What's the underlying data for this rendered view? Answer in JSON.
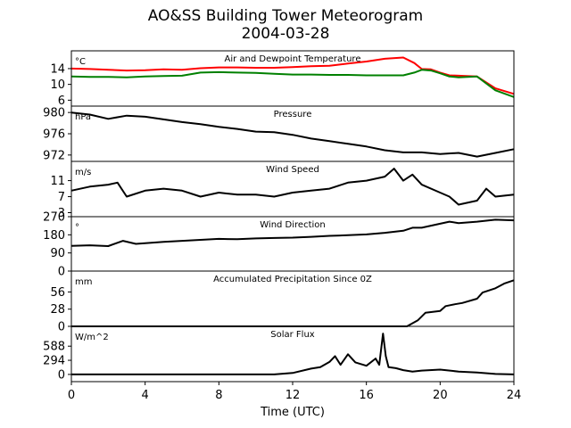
{
  "title": "AO&SS Building Tower Meteorogram",
  "subtitle": "2004-03-28",
  "xlabel": "Time (UTC)",
  "x_ticks": [
    "0",
    "4",
    "8",
    "12",
    "16",
    "20",
    "24"
  ],
  "colors": {
    "temperature": "#ff0000",
    "dewpoint": "#008000",
    "default": "#000000"
  },
  "chart_data": [
    {
      "type": "line",
      "title": "Air and Dewpoint Temperature",
      "unit": "°C",
      "xlim": [
        0,
        24
      ],
      "ylim": [
        4.5,
        18.5
      ],
      "yticks": [
        6,
        10,
        14
      ],
      "ytick_labels": [
        "6",
        "10",
        "14"
      ],
      "x": [
        0,
        1,
        2,
        3,
        4,
        5,
        6,
        7,
        8,
        9,
        10,
        11,
        12,
        13,
        14,
        15,
        16,
        17,
        18,
        18.6,
        19,
        19.5,
        20,
        20.5,
        21,
        22,
        23,
        24
      ],
      "series": [
        {
          "color": "#ff0000",
          "values": [
            14.0,
            13.9,
            13.7,
            13.5,
            13.6,
            13.8,
            13.7,
            14.1,
            14.3,
            14.3,
            14.2,
            14.2,
            14.4,
            14.6,
            14.7,
            15.3,
            15.8,
            16.5,
            16.8,
            15.4,
            13.9,
            13.8,
            13.0,
            12.3,
            12.2,
            12.0,
            9.0,
            7.6
          ]
        },
        {
          "color": "#008000",
          "values": [
            12.0,
            11.9,
            11.9,
            11.8,
            12.0,
            12.1,
            12.2,
            13.0,
            13.1,
            13.0,
            12.9,
            12.7,
            12.5,
            12.5,
            12.4,
            12.4,
            12.3,
            12.3,
            12.3,
            13.0,
            13.7,
            13.5,
            12.8,
            12.0,
            11.8,
            12.0,
            8.5,
            6.8
          ]
        }
      ]
    },
    {
      "type": "line",
      "title": "Pressure",
      "unit": "hPa",
      "xlim": [
        0,
        24
      ],
      "ylim": [
        970.8,
        981.2
      ],
      "yticks": [
        972,
        976,
        980
      ],
      "ytick_labels": [
        "972",
        "976",
        "980"
      ],
      "x": [
        0,
        1,
        2,
        3,
        4,
        5,
        6,
        7,
        8,
        9,
        10,
        11,
        12,
        13,
        14,
        15,
        16,
        17,
        18,
        19,
        20,
        21,
        22,
        23,
        24
      ],
      "series": [
        {
          "color": "#000000",
          "values": [
            980.0,
            979.6,
            978.8,
            979.4,
            979.2,
            978.7,
            978.2,
            977.8,
            977.3,
            976.9,
            976.4,
            976.3,
            975.8,
            975.1,
            974.6,
            974.1,
            973.6,
            972.9,
            972.5,
            972.5,
            972.2,
            972.4,
            971.7,
            972.4,
            973.1
          ]
        }
      ]
    },
    {
      "type": "line",
      "title": "Wind Speed",
      "unit": "m/s",
      "xlim": [
        0,
        24
      ],
      "ylim": [
        2.0,
        15.8
      ],
      "yticks": [
        3,
        7,
        11
      ],
      "ytick_labels": [
        "3",
        "7",
        "11"
      ],
      "x": [
        0,
        1,
        2,
        2.5,
        3,
        4,
        5,
        6,
        7,
        8,
        9,
        10,
        11,
        12,
        13,
        14,
        15,
        16,
        17,
        17.5,
        18,
        18.5,
        19,
        20,
        20.5,
        21,
        22,
        22.5,
        23,
        24
      ],
      "series": [
        {
          "color": "#000000",
          "values": [
            8.5,
            9.5,
            10.0,
            10.5,
            7.0,
            8.5,
            9.0,
            8.5,
            7.0,
            8.0,
            7.5,
            7.5,
            7.0,
            8.0,
            8.5,
            9.0,
            10.5,
            11.0,
            12.0,
            14.0,
            11.0,
            12.5,
            10.0,
            8.0,
            7.0,
            5.0,
            6.0,
            9.0,
            7.0,
            7.5
          ]
        }
      ]
    },
    {
      "type": "line",
      "title": "Wind Direction",
      "unit": "°",
      "xlim": [
        0,
        24
      ],
      "ylim": [
        0,
        270
      ],
      "yticks": [
        0,
        90,
        180,
        270
      ],
      "ytick_labels": [
        "0",
        "90",
        "180",
        "270"
      ],
      "x": [
        0,
        1,
        2,
        2.8,
        3.5,
        4,
        5,
        6,
        7,
        8,
        9,
        10,
        11,
        12,
        13,
        14,
        15,
        16,
        17,
        18,
        18.5,
        19,
        20,
        20.5,
        21,
        22,
        23,
        24
      ],
      "series": [
        {
          "color": "#000000",
          "values": [
            125,
            128,
            124,
            150,
            135,
            138,
            145,
            150,
            155,
            160,
            158,
            162,
            164,
            166,
            170,
            175,
            178,
            182,
            190,
            200,
            215,
            215,
            235,
            245,
            238,
            245,
            255,
            252
          ]
        }
      ]
    },
    {
      "type": "line",
      "title": "Accumulated Precipitation Since 0Z",
      "unit": "mm",
      "xlim": [
        0,
        24
      ],
      "ylim": [
        0,
        90
      ],
      "yticks": [
        0,
        28,
        56
      ],
      "ytick_labels": [
        "0",
        "28",
        "56"
      ],
      "x": [
        0,
        18.2,
        18.8,
        19.2,
        20,
        20.3,
        20.8,
        21.2,
        22,
        22.3,
        23,
        23.5,
        24
      ],
      "series": [
        {
          "color": "#000000",
          "values": [
            0,
            0,
            10,
            22,
            25,
            33,
            36,
            38,
            45,
            55,
            62,
            70,
            75
          ]
        }
      ]
    },
    {
      "type": "line",
      "title": "Solar Flux",
      "unit": "W/m^2",
      "xlim": [
        0,
        24
      ],
      "ylim": [
        -150,
        1000
      ],
      "yticks": [
        0,
        294,
        588
      ],
      "ytick_labels": [
        "0",
        "294",
        "588"
      ],
      "x": [
        0,
        11,
        12,
        13,
        13.5,
        14,
        14.3,
        14.6,
        15,
        15.4,
        16,
        16.5,
        16.7,
        16.9,
        17.05,
        17.2,
        17.6,
        18,
        18.5,
        19,
        20,
        21,
        22,
        23,
        24
      ],
      "series": [
        {
          "color": "#000000",
          "values": [
            0,
            0,
            30,
            120,
            150,
            260,
            380,
            200,
            420,
            250,
            180,
            330,
            200,
            850,
            380,
            150,
            130,
            90,
            60,
            80,
            100,
            60,
            40,
            10,
            0
          ]
        }
      ]
    }
  ]
}
